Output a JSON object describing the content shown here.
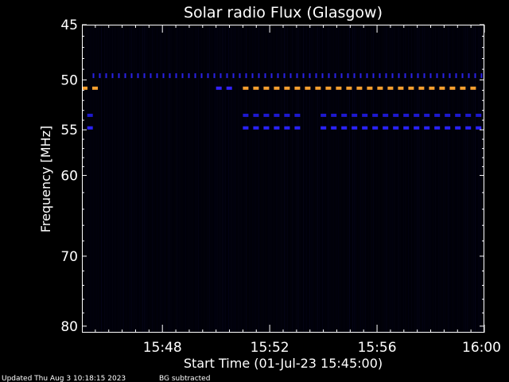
{
  "chart_data": {
    "type": "heatmap",
    "title": "Solar radio Flux (Glasgow)",
    "xlabel": "Start Time (01-Jul-23 15:45:00)",
    "ylabel": "Frequency [MHz]",
    "x_unit": "minutes after 15:45:00",
    "x_range": [
      0,
      15
    ],
    "x_ticks": [
      {
        "value": 3,
        "label": "15:48"
      },
      {
        "value": 7,
        "label": "15:52"
      },
      {
        "value": 11,
        "label": "15:56"
      },
      {
        "value": 15,
        "label": "16:00"
      }
    ],
    "y_scale": "log",
    "y_range": [
      45,
      81
    ],
    "y_reversed": true,
    "y_ticks": [
      45,
      50,
      55,
      60,
      70,
      80
    ],
    "background_color": "#000008",
    "bands": [
      {
        "freq": 49.6,
        "t_start": 0.4,
        "t_end": 15.0,
        "style": "dotted",
        "color": "#2a22e8"
      },
      {
        "freq": 50.8,
        "t_start": 0.0,
        "t_end": 0.7,
        "style": "dashed",
        "color": "#f7a030"
      },
      {
        "freq": 50.8,
        "t_start": 5.0,
        "t_end": 5.8,
        "style": "dashed",
        "color": "#3322ff"
      },
      {
        "freq": 50.8,
        "t_start": 6.0,
        "t_end": 15.0,
        "style": "dashed",
        "color": "#f7a030"
      },
      {
        "freq": 53.5,
        "t_start": 0.2,
        "t_end": 0.7,
        "style": "dashed",
        "color": "#1d18d0"
      },
      {
        "freq": 53.5,
        "t_start": 6.0,
        "t_end": 8.3,
        "style": "dashed",
        "color": "#1d18d0"
      },
      {
        "freq": 53.5,
        "t_start": 8.9,
        "t_end": 15.0,
        "style": "dashed",
        "color": "#1d18d0"
      },
      {
        "freq": 54.8,
        "t_start": 0.2,
        "t_end": 0.7,
        "style": "dashed",
        "color": "#2a22ff"
      },
      {
        "freq": 54.8,
        "t_start": 6.0,
        "t_end": 8.3,
        "style": "dashed",
        "color": "#2a22ff"
      },
      {
        "freq": 54.8,
        "t_start": 8.9,
        "t_end": 15.0,
        "style": "dashed",
        "color": "#2a22ff"
      }
    ]
  },
  "footer": {
    "updated": "Updated Thu Aug  3 10:18:15 2023",
    "note": "BG subtracted"
  }
}
